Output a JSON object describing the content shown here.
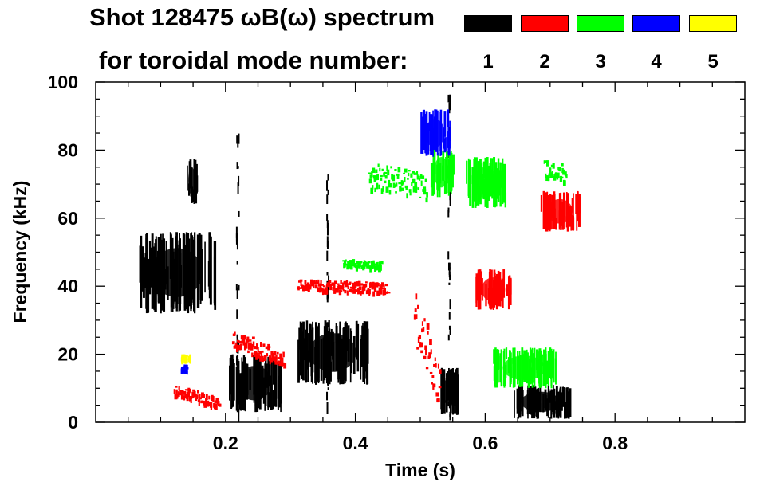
{
  "chart_data": {
    "type": "heatmap",
    "title_line1": "Shot 128475 ωB(ω) spectrum",
    "title_line2": "for toroidal mode number:",
    "xlabel": "Time (s)",
    "ylabel": "Frequency (kHz)",
    "xlim": [
      0.0,
      1.0
    ],
    "ylim": [
      0,
      100
    ],
    "x_ticks": [
      0.2,
      0.4,
      0.6,
      0.8
    ],
    "x_tick_labels": [
      "0.2",
      "0.4",
      "0.6",
      "0.8"
    ],
    "y_ticks": [
      0,
      20,
      40,
      60,
      80,
      100
    ],
    "y_tick_labels": [
      "0",
      "20",
      "40",
      "60",
      "80",
      "100"
    ],
    "legend": [
      {
        "mode": "1",
        "color": "#000000"
      },
      {
        "mode": "2",
        "color": "#ff0000"
      },
      {
        "mode": "3",
        "color": "#00ff00"
      },
      {
        "mode": "4",
        "color": "#0000ff"
      },
      {
        "mode": "5",
        "color": "#ffff00"
      }
    ],
    "features": [
      {
        "mode": "1",
        "color": "#000000",
        "shape": "blob",
        "t": [
          0.065,
          0.185
        ],
        "f": [
          32,
          56
        ]
      },
      {
        "mode": "1",
        "color": "#000000",
        "shape": "blob",
        "t": [
          0.14,
          0.155
        ],
        "f": [
          64,
          78
        ]
      },
      {
        "mode": "1",
        "color": "#000000",
        "shape": "blob",
        "t": [
          0.205,
          0.285
        ],
        "f": [
          3,
          20
        ]
      },
      {
        "mode": "1",
        "color": "#000000",
        "shape": "blob",
        "t": [
          0.31,
          0.42
        ],
        "f": [
          11,
          30
        ]
      },
      {
        "mode": "1",
        "color": "#000000",
        "shape": "blob",
        "t": [
          0.53,
          0.56
        ],
        "f": [
          2,
          16
        ]
      },
      {
        "mode": "1",
        "color": "#000000",
        "shape": "blob",
        "t": [
          0.64,
          0.73
        ],
        "f": [
          1,
          11
        ]
      },
      {
        "mode": "1",
        "color": "#000000",
        "shape": "stripe",
        "t": [
          0.216,
          0.222
        ],
        "f": [
          1,
          85
        ]
      },
      {
        "mode": "1",
        "color": "#000000",
        "shape": "stripe",
        "t": [
          0.542,
          0.548
        ],
        "f": [
          1,
          98
        ]
      },
      {
        "mode": "1",
        "color": "#000000",
        "shape": "stripe",
        "t": [
          0.355,
          0.36
        ],
        "f": [
          5,
          74
        ]
      },
      {
        "mode": "2",
        "color": "#ff0000",
        "shape": "band",
        "t": [
          0.31,
          0.45
        ],
        "f": [
          36,
          42
        ]
      },
      {
        "mode": "2",
        "color": "#ff0000",
        "shape": "band",
        "t": [
          0.21,
          0.29
        ],
        "f": [
          17,
          27
        ]
      },
      {
        "mode": "2",
        "color": "#ff0000",
        "shape": "band",
        "t": [
          0.12,
          0.19
        ],
        "f": [
          5,
          11
        ]
      },
      {
        "mode": "2",
        "color": "#ff0000",
        "shape": "blob",
        "t": [
          0.585,
          0.64
        ],
        "f": [
          33,
          45
        ]
      },
      {
        "mode": "2",
        "color": "#ff0000",
        "shape": "blob",
        "t": [
          0.685,
          0.745
        ],
        "f": [
          56,
          68
        ]
      },
      {
        "mode": "2",
        "color": "#ff0000",
        "shape": "band",
        "t": [
          0.49,
          0.53
        ],
        "f": [
          6,
          38
        ]
      },
      {
        "mode": "3",
        "color": "#00ff00",
        "shape": "blob",
        "t": [
          0.57,
          0.63
        ],
        "f": [
          63,
          78
        ]
      },
      {
        "mode": "3",
        "color": "#00ff00",
        "shape": "blob",
        "t": [
          0.515,
          0.55
        ],
        "f": [
          66,
          81
        ]
      },
      {
        "mode": "3",
        "color": "#00ff00",
        "shape": "band",
        "t": [
          0.42,
          0.51
        ],
        "f": [
          60,
          76
        ]
      },
      {
        "mode": "3",
        "color": "#00ff00",
        "shape": "band",
        "t": [
          0.69,
          0.725
        ],
        "f": [
          67,
          77
        ]
      },
      {
        "mode": "3",
        "color": "#00ff00",
        "shape": "band",
        "t": [
          0.38,
          0.44
        ],
        "f": [
          44,
          48
        ]
      },
      {
        "mode": "3",
        "color": "#00ff00",
        "shape": "blob",
        "t": [
          0.61,
          0.71
        ],
        "f": [
          10,
          22
        ]
      },
      {
        "mode": "4",
        "color": "#0000ff",
        "shape": "blob",
        "t": [
          0.5,
          0.545
        ],
        "f": [
          78,
          92
        ]
      },
      {
        "mode": "4",
        "color": "#0000ff",
        "shape": "blob",
        "t": [
          0.13,
          0.14
        ],
        "f": [
          14,
          17
        ]
      },
      {
        "mode": "5",
        "color": "#ffff00",
        "shape": "blob",
        "t": [
          0.13,
          0.145
        ],
        "f": [
          17,
          20
        ]
      }
    ]
  }
}
